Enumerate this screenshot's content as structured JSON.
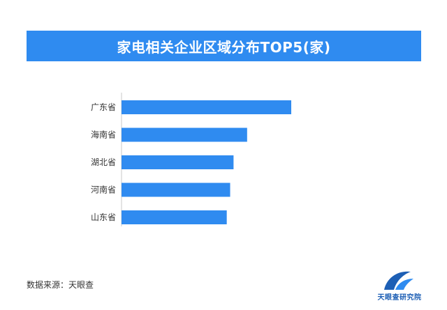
{
  "title": "家电相关企业区域分布TOP5(家)",
  "source_text": "数据来源：天眼查",
  "logo_text": "天眼查研究院",
  "colors": {
    "banner": "#2f8bf0",
    "bar": "#2f8bf0",
    "logo": "#1d5fb5"
  },
  "chart_data": {
    "type": "bar",
    "orientation": "horizontal",
    "categories": [
      "广东省",
      "海南省",
      "湖北省",
      "河南省",
      "山东省"
    ],
    "values": [
      100,
      74,
      66,
      64,
      62
    ],
    "title": "家电相关企业区域分布TOP5(家)",
    "xlabel": "",
    "ylabel": "",
    "xlim": [
      0,
      100
    ],
    "grid": false,
    "legend": "none",
    "data_labels": false
  }
}
